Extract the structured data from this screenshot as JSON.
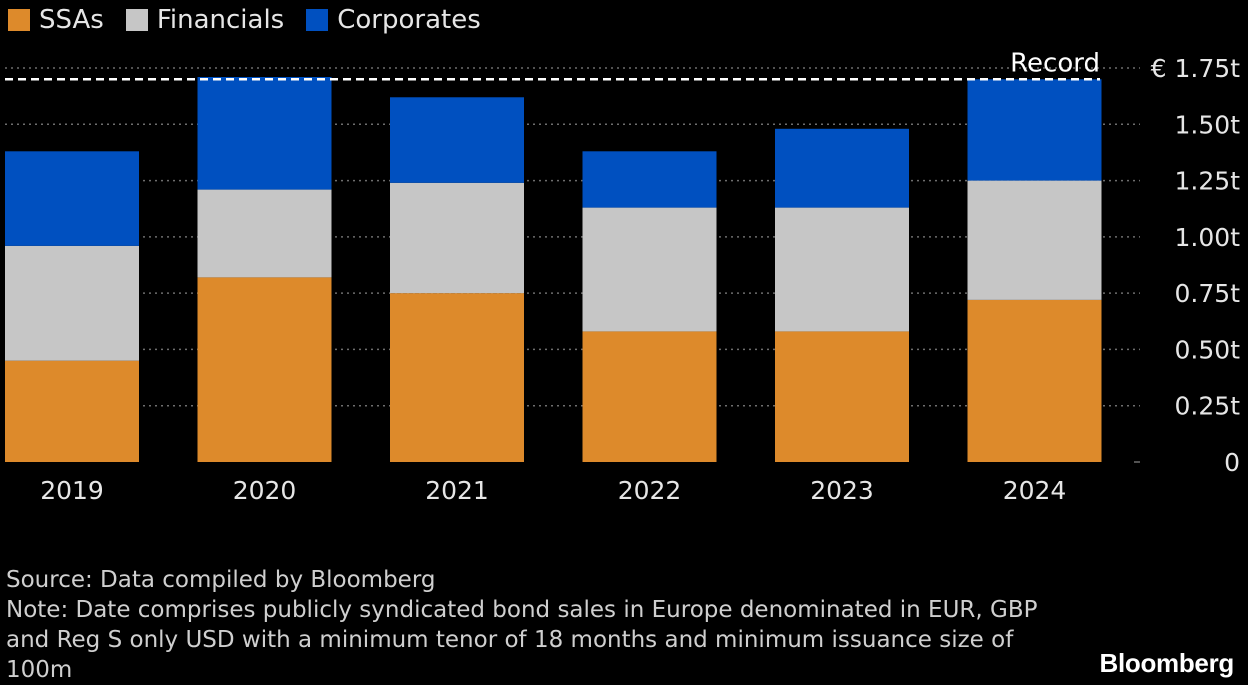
{
  "chart_data": {
    "type": "bar",
    "stacked": true,
    "categories": [
      "2019",
      "2020",
      "2021",
      "2022",
      "2023",
      "2024"
    ],
    "series": [
      {
        "name": "SSAs",
        "color": "#dd8a2b",
        "values": [
          0.45,
          0.82,
          0.75,
          0.58,
          0.58,
          0.72
        ]
      },
      {
        "name": "Financials",
        "color": "#c6c6c6",
        "values": [
          0.51,
          0.39,
          0.49,
          0.55,
          0.55,
          0.53
        ]
      },
      {
        "name": "Corporates",
        "color": "#0050c0",
        "values": [
          0.42,
          0.5,
          0.38,
          0.25,
          0.35,
          0.45
        ]
      }
    ],
    "ylim": [
      0,
      1.75
    ],
    "yticks": [
      {
        "value": 0,
        "label": "0"
      },
      {
        "value": 0.25,
        "label": "0.25t"
      },
      {
        "value": 0.5,
        "label": "0.50t"
      },
      {
        "value": 0.75,
        "label": "0.75t"
      },
      {
        "value": 1.0,
        "label": "1.00t"
      },
      {
        "value": 1.25,
        "label": "1.25t"
      },
      {
        "value": 1.5,
        "label": "1.50t"
      },
      {
        "value": 1.75,
        "label": "€ 1.75t"
      }
    ],
    "reference_line": {
      "value": 1.7,
      "label": "Record"
    },
    "grid": true,
    "legend_position": "top-left",
    "axis_position": "right"
  },
  "footnotes": {
    "source": "Source: Data compiled by Bloomberg",
    "note": "Note: Date comprises publicly syndicated bond sales in Europe denominated in EUR, GBP and Reg S only USD with a minimum tenor of 18 months and minimum issuance size of 100m"
  },
  "brand": "Bloomberg"
}
